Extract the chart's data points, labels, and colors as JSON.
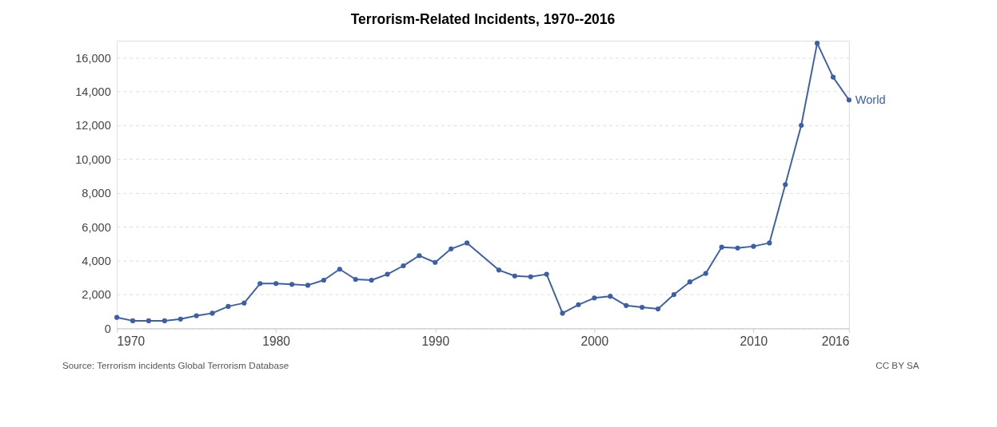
{
  "chart_data": {
    "type": "line",
    "title": "Terrorism-Related Incidents, 1970--2016",
    "x": [
      1970,
      1971,
      1972,
      1973,
      1974,
      1975,
      1976,
      1977,
      1978,
      1979,
      1980,
      1981,
      1982,
      1983,
      1984,
      1985,
      1986,
      1987,
      1988,
      1989,
      1990,
      1991,
      1992,
      1994,
      1995,
      1996,
      1997,
      1998,
      1999,
      2000,
      2001,
      2002,
      2003,
      2004,
      2005,
      2006,
      2007,
      2008,
      2009,
      2010,
      2011,
      2012,
      2013,
      2014,
      2015,
      2016
    ],
    "series": [
      {
        "name": "World",
        "color": "#3d5fa8",
        "values": [
          650,
          450,
          450,
          450,
          550,
          750,
          900,
          1300,
          1500,
          2650,
          2650,
          2600,
          2550,
          2850,
          3500,
          2900,
          2850,
          3200,
          3700,
          4300,
          3900,
          4700,
          5050,
          3450,
          3100,
          3050,
          3200,
          900,
          1400,
          1800,
          1900,
          1350,
          1250,
          1150,
          2000,
          2750,
          3250,
          4800,
          4750,
          4850,
          5050,
          8500,
          12000,
          16850,
          14850,
          13500
        ]
      }
    ],
    "xlim": [
      1970,
      2016
    ],
    "xticks": [
      1970,
      1980,
      1990,
      2000,
      2010,
      2016
    ],
    "ylim": [
      0,
      17000
    ],
    "yticks": [
      0,
      {
        "value": 2000,
        "label": "2,000"
      },
      {
        "value": 4000,
        "label": "4,000"
      },
      {
        "value": 6000,
        "label": "6,000"
      },
      {
        "value": 8000,
        "label": "8,000"
      },
      {
        "value": 10000,
        "label": "10,000"
      },
      {
        "value": 12000,
        "label": "12,000"
      },
      {
        "value": 14000,
        "label": "14,000"
      },
      {
        "value": 16000,
        "label": "16,000"
      }
    ],
    "grid": "y",
    "marker": "circle",
    "line_style": "solid",
    "legend": false,
    "annotations": [
      "Source: Terrorism incidents   Global Terrorism Database",
      "CC BY SA"
    ]
  }
}
